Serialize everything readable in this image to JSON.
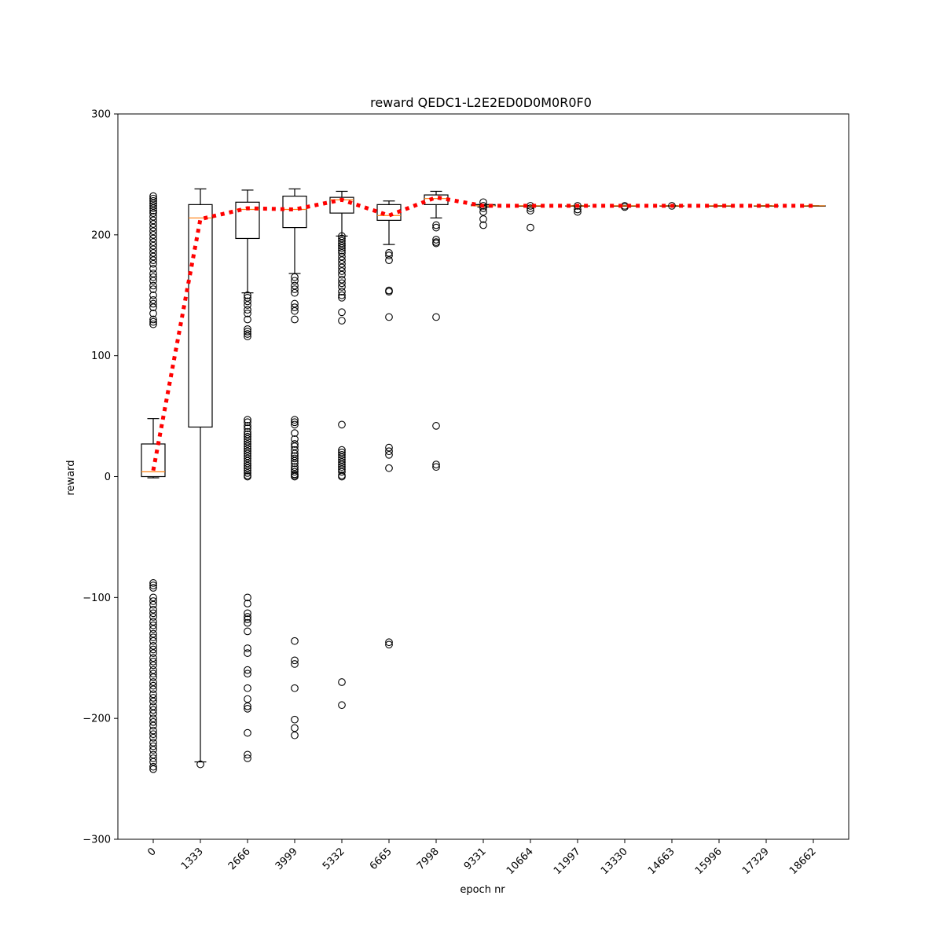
{
  "chart_data": {
    "type": "box",
    "title": "reward QEDC1-L2E2ED0D0M0R0F0",
    "xlabel": "epoch nr",
    "ylabel": "reward",
    "ylim": [
      -300,
      300
    ],
    "yticks": [
      -300,
      -200,
      -100,
      0,
      100,
      200,
      300
    ],
    "ytick_labels": [
      "−300",
      "−200",
      "−100",
      "0",
      "100",
      "200",
      "300"
    ],
    "categories": [
      "0",
      "1333",
      "2666",
      "3999",
      "5332",
      "6665",
      "7998",
      "9331",
      "10664",
      "11997",
      "13330",
      "14663",
      "15996",
      "17329",
      "18662"
    ],
    "boxes": [
      {
        "whislo": -1,
        "q1": 0,
        "med": 4,
        "q3": 27,
        "whishi": 48
      },
      {
        "whislo": -236,
        "q1": 41,
        "med": 214,
        "q3": 225,
        "whishi": 238
      },
      {
        "whislo": 152,
        "q1": 197,
        "med": 221,
        "q3": 227,
        "whishi": 237
      },
      {
        "whislo": 168,
        "q1": 206,
        "med": 221,
        "q3": 232,
        "whishi": 238
      },
      {
        "whislo": 199,
        "q1": 218,
        "med": 229,
        "q3": 231,
        "whishi": 236
      },
      {
        "whislo": 192,
        "q1": 212,
        "med": 216,
        "q3": 225,
        "whishi": 228
      },
      {
        "whislo": 214,
        "q1": 225,
        "med": 230,
        "q3": 233,
        "whishi": 236
      },
      {
        "whislo": 223,
        "q1": 224,
        "med": 224,
        "q3": 225,
        "whishi": 225
      },
      {
        "whislo": 224,
        "q1": 224,
        "med": 224,
        "q3": 224,
        "whishi": 224
      },
      {
        "whislo": 224,
        "q1": 224,
        "med": 224,
        "q3": 224,
        "whishi": 224
      },
      {
        "whislo": 224,
        "q1": 224,
        "med": 224,
        "q3": 224,
        "whishi": 224
      },
      {
        "whislo": 224,
        "q1": 224,
        "med": 224,
        "q3": 224,
        "whishi": 224
      },
      {
        "whislo": 224,
        "q1": 224,
        "med": 224,
        "q3": 224,
        "whishi": 224
      },
      {
        "whislo": 224,
        "q1": 224,
        "med": 224,
        "q3": 224,
        "whishi": 224
      },
      {
        "whislo": 224,
        "q1": 224,
        "med": 224,
        "q3": 224,
        "whishi": 224
      }
    ],
    "fliers": [
      [
        232,
        230,
        228,
        226,
        224,
        222,
        220,
        218,
        215,
        212,
        209,
        206,
        203,
        200,
        197,
        194,
        191,
        188,
        185,
        182,
        179,
        176,
        172,
        168,
        165,
        162,
        158,
        155,
        150,
        146,
        143,
        140,
        135,
        130,
        128,
        126,
        -88,
        -90,
        -92,
        -100,
        -103,
        -106,
        -110,
        -113,
        -116,
        -120,
        -123,
        -126,
        -130,
        -133,
        -136,
        -140,
        -143,
        -146,
        -150,
        -153,
        -156,
        -160,
        -163,
        -166,
        -170,
        -173,
        -176,
        -180,
        -183,
        -186,
        -190,
        -193,
        -196,
        -200,
        -203,
        -206,
        -210,
        -213,
        -216,
        -220,
        -223,
        -226,
        -230,
        -233,
        -236,
        -240,
        -242
      ],
      [
        -238
      ],
      [
        150,
        148,
        145,
        142,
        138,
        135,
        130,
        122,
        120,
        118,
        116,
        47,
        45,
        42,
        40,
        37,
        35,
        33,
        31,
        29,
        27,
        25,
        23,
        21,
        19,
        17,
        15,
        13,
        11,
        9,
        7,
        5,
        3,
        1,
        0,
        -100,
        -105,
        -113,
        -116,
        -118,
        -121,
        -128,
        -142,
        -146,
        -160,
        -163,
        -175,
        -184,
        -190,
        -192,
        -212,
        -230,
        -233
      ],
      [
        165,
        162,
        158,
        155,
        152,
        143,
        140,
        137,
        130,
        47,
        45,
        43,
        36,
        31,
        27,
        25,
        22,
        19,
        17,
        15,
        13,
        11,
        8,
        6,
        4,
        2,
        1,
        0,
        -136,
        -152,
        -155,
        -175,
        -201,
        -208,
        -214
      ],
      [
        199,
        197,
        195,
        193,
        191,
        189,
        187,
        185,
        182,
        179,
        176,
        173,
        170,
        167,
        163,
        160,
        157,
        153,
        150,
        148,
        136,
        129,
        43,
        22,
        20,
        18,
        16,
        14,
        12,
        10,
        8,
        6,
        4,
        1,
        0,
        -170,
        -189
      ],
      [
        185,
        183,
        179,
        154,
        153,
        132,
        24,
        21,
        18,
        7,
        -137,
        -139
      ],
      [
        208,
        206,
        196,
        194,
        193,
        132,
        42,
        10,
        8
      ],
      [
        227,
        224,
        222,
        219,
        213,
        208
      ],
      [
        224,
        222,
        220,
        206
      ],
      [
        224,
        221,
        219
      ],
      [
        224,
        223
      ],
      [
        224
      ],
      [],
      [],
      []
    ],
    "mean_line": {
      "style": "dotted",
      "color": "#ff0000",
      "values": [
        5,
        213,
        222,
        221,
        229,
        216,
        231,
        224,
        224,
        224,
        224,
        224,
        224,
        224,
        224
      ]
    },
    "median_color": "#ff7f0e",
    "box_color": "#000000",
    "grid": false
  }
}
